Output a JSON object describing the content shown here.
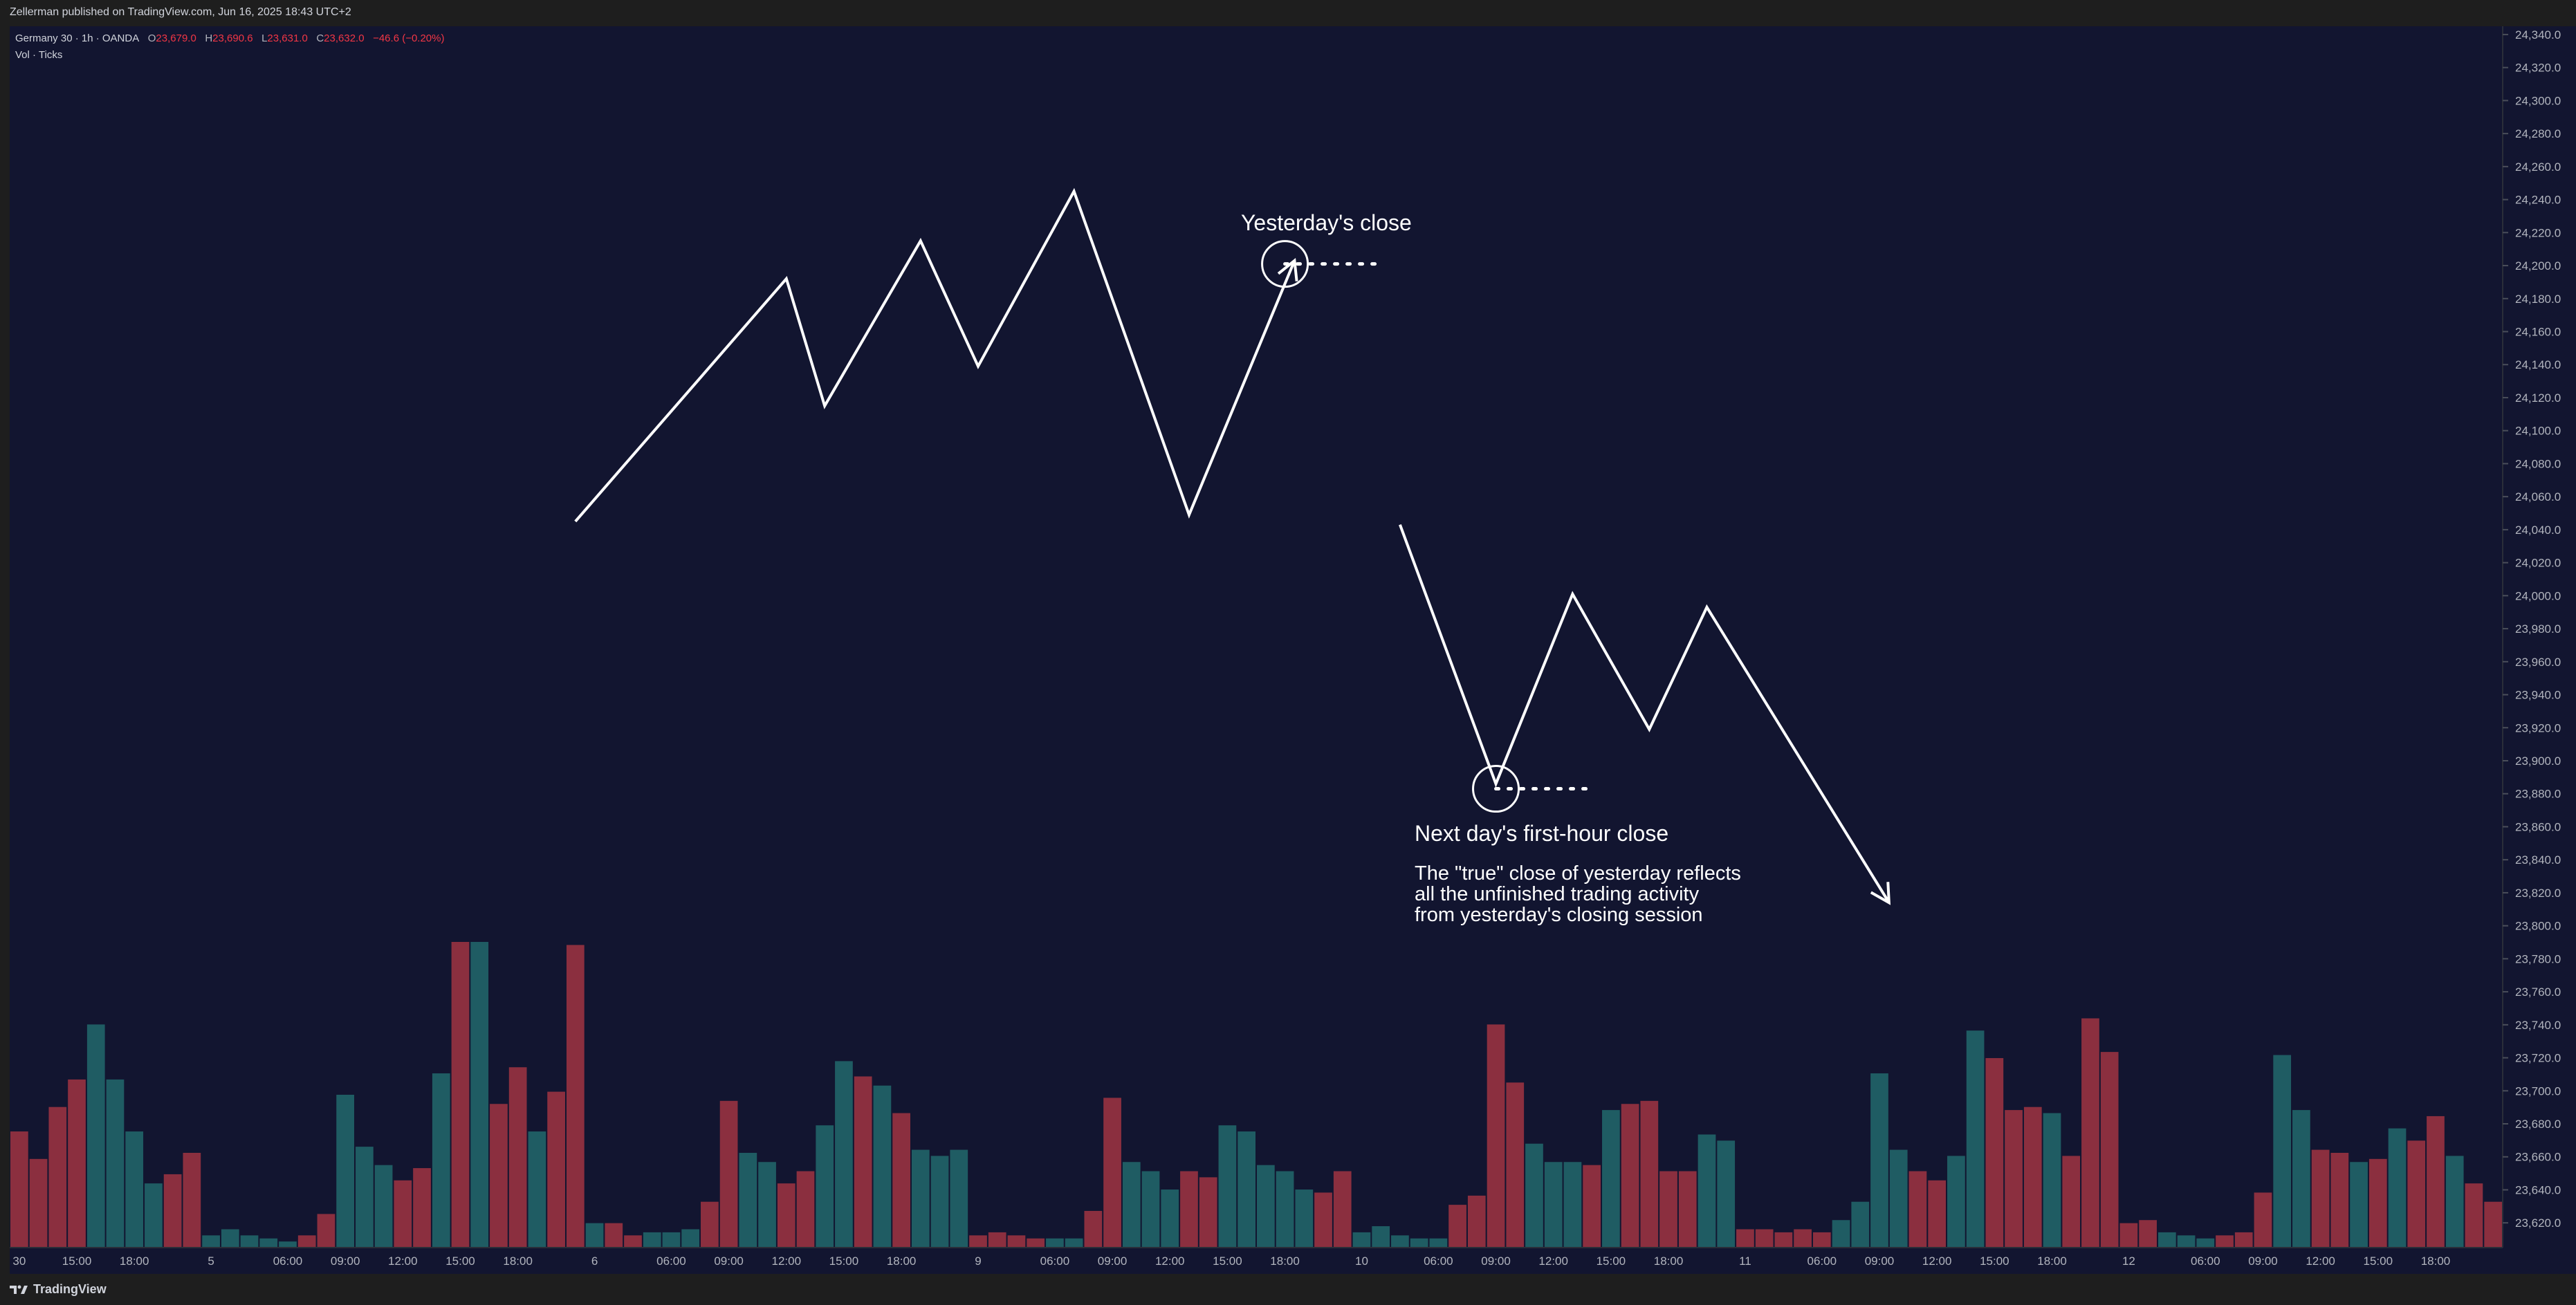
{
  "header": {
    "publisher_line": "Zellerman published on TradingView.com, Jun 16, 2025 18:43 UTC+2"
  },
  "legend": {
    "symbol": "Germany 30 · 1h · OANDA",
    "open_label": "O",
    "open": "23,679.0",
    "high_label": "H",
    "high": "23,690.6",
    "low_label": "L",
    "low": "23,631.0",
    "close_label": "C",
    "close": "23,632.0",
    "change": "−46.6 (−0.20%)",
    "volume_label": "Vol · Ticks"
  },
  "footer": {
    "brand": "TradingView",
    "logo_icon": "tradingview-logo-icon"
  },
  "colors": {
    "background": "#121530",
    "frame": "#1e1e1e",
    "volume_up": "#1f5c63",
    "volume_down": "#8b2f3f",
    "drawing": "#ffffff",
    "axis_text": "#b2b5be"
  },
  "chart_data": {
    "type": "bar",
    "title": "Germany 30 · 1h · OANDA",
    "price_axis": {
      "ylim": [
        23605,
        24345
      ],
      "ticks": [
        23620,
        23640,
        23660,
        23680,
        23700,
        23720,
        23740,
        23760,
        23780,
        23800,
        23820,
        23840,
        23860,
        23880,
        23900,
        23920,
        23940,
        23960,
        23980,
        24000,
        24020,
        24040,
        24060,
        24080,
        24100,
        24120,
        24140,
        24160,
        24180,
        24200,
        24220,
        24240,
        24260,
        24280,
        24300,
        24320,
        24340
      ],
      "tick_labels": [
        "23,620.0",
        "23,640.0",
        "23,660.0",
        "23,680.0",
        "23,700.0",
        "23,720.0",
        "23,740.0",
        "23,760.0",
        "23,780.0",
        "23,800.0",
        "23,820.0",
        "23,840.0",
        "23,860.0",
        "23,880.0",
        "23,900.0",
        "23,920.0",
        "23,940.0",
        "23,960.0",
        "23,980.0",
        "24,000.0",
        "24,020.0",
        "24,040.0",
        "24,060.0",
        "24,080.0",
        "24,100.0",
        "24,120.0",
        "24,140.0",
        "24,160.0",
        "24,180.0",
        "24,200.0",
        "24,220.0",
        "24,240.0",
        "24,260.0",
        "24,280.0",
        "24,300.0",
        "24,320.0",
        "24,340.0"
      ]
    },
    "time_axis": {
      "bars_visible": 130,
      "ticks": [
        {
          "bar": 0,
          "label": "30"
        },
        {
          "bar": 3,
          "label": "15:00"
        },
        {
          "bar": 6,
          "label": "18:00"
        },
        {
          "bar": 10,
          "label": "5"
        },
        {
          "bar": 14,
          "label": "06:00"
        },
        {
          "bar": 17,
          "label": "09:00"
        },
        {
          "bar": 20,
          "label": "12:00"
        },
        {
          "bar": 23,
          "label": "15:00"
        },
        {
          "bar": 26,
          "label": "18:00"
        },
        {
          "bar": 30,
          "label": "6"
        },
        {
          "bar": 34,
          "label": "06:00"
        },
        {
          "bar": 37,
          "label": "09:00"
        },
        {
          "bar": 40,
          "label": "12:00"
        },
        {
          "bar": 43,
          "label": "15:00"
        },
        {
          "bar": 46,
          "label": "18:00"
        },
        {
          "bar": 50,
          "label": "9"
        },
        {
          "bar": 54,
          "label": "06:00"
        },
        {
          "bar": 57,
          "label": "09:00"
        },
        {
          "bar": 60,
          "label": "12:00"
        },
        {
          "bar": 63,
          "label": "15:00"
        },
        {
          "bar": 66,
          "label": "18:00"
        },
        {
          "bar": 70,
          "label": "10"
        },
        {
          "bar": 74,
          "label": "06:00"
        },
        {
          "bar": 77,
          "label": "09:00"
        },
        {
          "bar": 80,
          "label": "12:00"
        },
        {
          "bar": 83,
          "label": "15:00"
        },
        {
          "bar": 86,
          "label": "18:00"
        },
        {
          "bar": 90,
          "label": "11"
        },
        {
          "bar": 94,
          "label": "06:00"
        },
        {
          "bar": 97,
          "label": "09:00"
        },
        {
          "bar": 100,
          "label": "12:00"
        },
        {
          "bar": 103,
          "label": "15:00"
        },
        {
          "bar": 106,
          "label": "18:00"
        },
        {
          "bar": 110,
          "label": "12"
        },
        {
          "bar": 114,
          "label": "06:00"
        },
        {
          "bar": 117,
          "label": "09:00"
        },
        {
          "bar": 120,
          "label": "12:00"
        },
        {
          "bar": 123,
          "label": "15:00"
        },
        {
          "bar": 126,
          "label": "18:00"
        }
      ]
    },
    "volume_series": {
      "name": "Vol · Ticks",
      "values": [
        0.38,
        0.29,
        0.46,
        0.55,
        0.73,
        0.55,
        0.38,
        0.21,
        0.24,
        0.31,
        0.04,
        0.06,
        0.04,
        0.03,
        0.02,
        0.04,
        0.11,
        0.5,
        0.33,
        0.27,
        0.22,
        0.26,
        0.57,
        1.0,
        1.0,
        0.47,
        0.59,
        0.38,
        0.51,
        0.99,
        0.08,
        0.08,
        0.04,
        0.05,
        0.05,
        0.06,
        0.15,
        0.48,
        0.31,
        0.28,
        0.21,
        0.25,
        0.4,
        0.61,
        0.56,
        0.53,
        0.44,
        0.32,
        0.3,
        0.32,
        0.04,
        0.05,
        0.04,
        0.03,
        0.03,
        0.03,
        0.12,
        0.49,
        0.28,
        0.25,
        0.19,
        0.25,
        0.23,
        0.4,
        0.38,
        0.27,
        0.25,
        0.19,
        0.18,
        0.25,
        0.05,
        0.07,
        0.04,
        0.03,
        0.03,
        0.14,
        0.17,
        0.73,
        0.54,
        0.34,
        0.28,
        0.28,
        0.27,
        0.45,
        0.47,
        0.48,
        0.25,
        0.25,
        0.37,
        0.35,
        0.06,
        0.06,
        0.05,
        0.06,
        0.05,
        0.09,
        0.15,
        0.57,
        0.32,
        0.25,
        0.22,
        0.3,
        0.71,
        0.62,
        0.45,
        0.46,
        0.44,
        0.3,
        0.75,
        0.64,
        0.08,
        0.09,
        0.05,
        0.04,
        0.03,
        0.04,
        0.05,
        0.18,
        0.63,
        0.45,
        0.32,
        0.31,
        0.28,
        0.29,
        0.39,
        0.35,
        0.43,
        0.3,
        0.21,
        0.15,
        0.17
      ],
      "direction": [
        "d",
        "d",
        "d",
        "d",
        "u",
        "u",
        "u",
        "u",
        "d",
        "d",
        "u",
        "u",
        "u",
        "u",
        "u",
        "d",
        "d",
        "u",
        "u",
        "u",
        "d",
        "d",
        "u",
        "d",
        "u",
        "d",
        "d",
        "u",
        "d",
        "d",
        "u",
        "d",
        "d",
        "u",
        "u",
        "u",
        "d",
        "d",
        "u",
        "u",
        "d",
        "d",
        "u",
        "u",
        "d",
        "u",
        "d",
        "u",
        "u",
        "u",
        "d",
        "d",
        "d",
        "d",
        "u",
        "u",
        "d",
        "d",
        "u",
        "u",
        "u",
        "d",
        "d",
        "u",
        "u",
        "u",
        "u",
        "u",
        "d",
        "d",
        "u",
        "u",
        "u",
        "u",
        "u",
        "d",
        "d",
        "d",
        "d",
        "u",
        "u",
        "u",
        "d",
        "u",
        "d",
        "d",
        "d",
        "d",
        "u",
        "u",
        "d",
        "d",
        "d",
        "d",
        "d",
        "u",
        "u",
        "u",
        "u",
        "d",
        "d",
        "u",
        "u",
        "d",
        "d",
        "d",
        "u",
        "d",
        "d",
        "d",
        "d",
        "d",
        "u",
        "u",
        "u",
        "d",
        "d",
        "d",
        "u",
        "u",
        "d",
        "d",
        "u",
        "d",
        "u",
        "d",
        "d",
        "u",
        "d",
        "d"
      ]
    },
    "annotations": {
      "yesterdays_close_label": "Yesterday's close",
      "next_day_label": "Next day's first-hour close",
      "explanation_line1": "The \"true\" close of yesterday reflects",
      "explanation_line2": "all the unfinished trading activity",
      "explanation_line3": "from yesterday's closing session",
      "path_day1": [
        {
          "bar": 29,
          "price": 24045
        },
        {
          "bar": 40,
          "price": 24192
        },
        {
          "bar": 42,
          "price": 24115
        },
        {
          "bar": 47,
          "price": 24215
        },
        {
          "bar": 50,
          "price": 24139
        },
        {
          "bar": 55,
          "price": 24245
        },
        {
          "bar": 61,
          "price": 24049
        },
        {
          "bar": 66.5,
          "price": 24203
        }
      ],
      "path_day2": [
        {
          "bar": 72,
          "price": 24043
        },
        {
          "bar": 77,
          "price": 23886
        },
        {
          "bar": 81,
          "price": 24001
        },
        {
          "bar": 85,
          "price": 23919
        },
        {
          "bar": 88,
          "price": 23993
        },
        {
          "bar": 97.5,
          "price": 23814
        }
      ],
      "circle_1": {
        "bar": 66,
        "price": 24201
      },
      "circle_2": {
        "bar": 77,
        "price": 23883
      }
    }
  }
}
